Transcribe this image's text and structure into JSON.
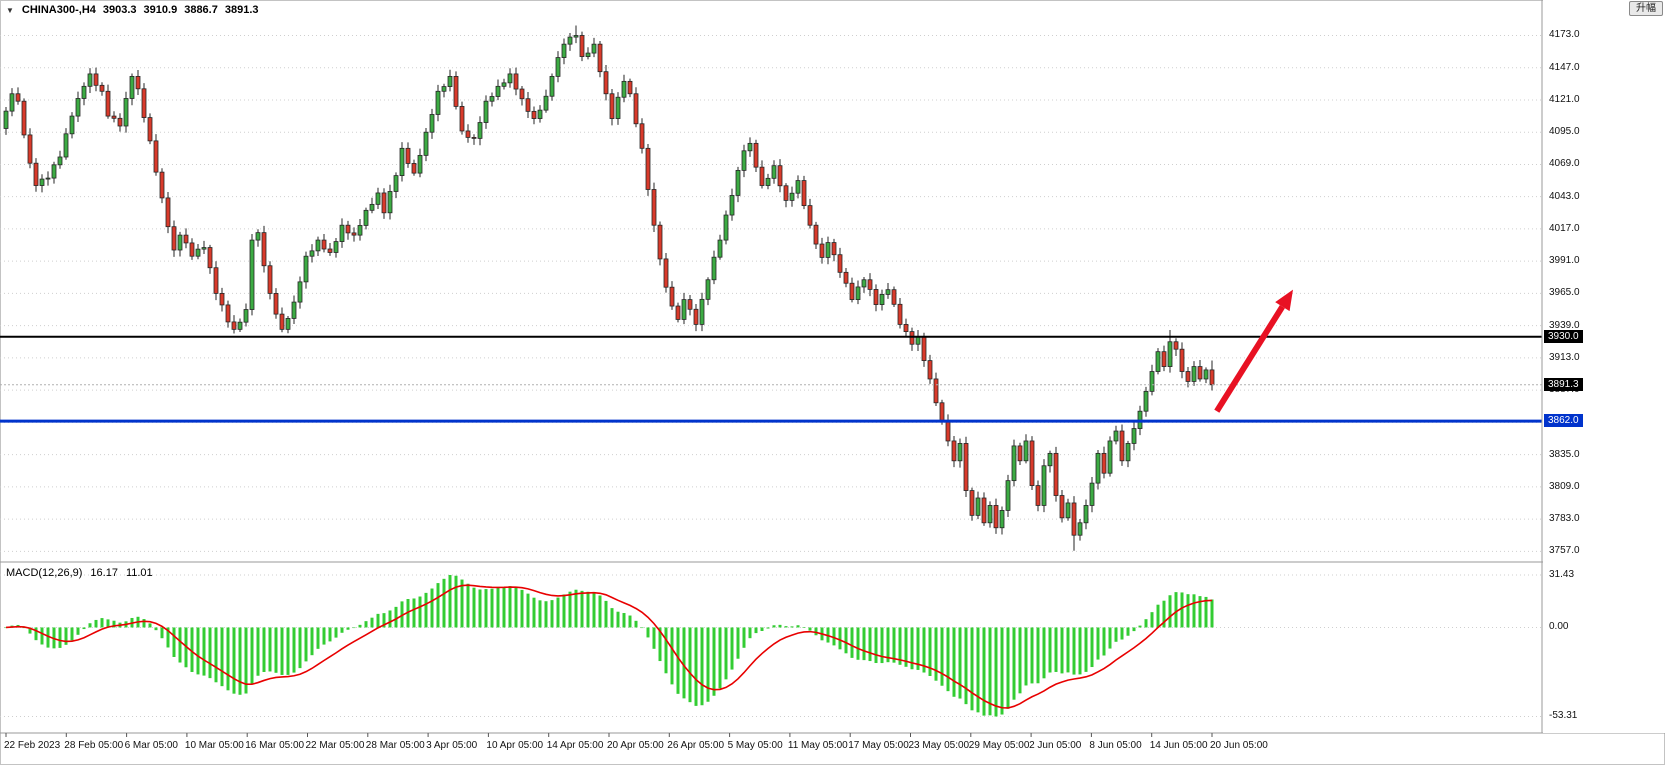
{
  "header": {
    "dropdown_glyph": "▼",
    "symbol": "CHINA300-,H4",
    "open": "3903.3",
    "high": "3910.9",
    "low": "3886.7",
    "close": "3891.3"
  },
  "toolbar": {
    "rise_button_label": "升幅"
  },
  "colors": {
    "bull_body": "#3cab43",
    "bear_body": "#d93a2b",
    "candle_border": "#262626",
    "macd_hist": "#33cc33",
    "macd_signal": "#e80000",
    "grid": "#cfcfcf",
    "bid_line": "#b0b0b0",
    "separator": "#9a9a9a",
    "arrow": "#e81123",
    "axis_text": "#111111"
  },
  "chart_data": [
    {
      "type": "candlestick",
      "symbol": "CHINA300-,H4",
      "y_ticks": [
        "4173.0",
        "4147.0",
        "4121.0",
        "4095.0",
        "4069.0",
        "4043.0",
        "4017.0",
        "3991.0",
        "3965.0",
        "3939.0",
        "3913.0",
        "3887.0",
        "3861.0",
        "3835.0",
        "3809.0",
        "3783.0",
        "3757.0"
      ],
      "y_range": [
        3750,
        4200
      ],
      "x_labels": [
        "22 Feb 2023",
        "28 Feb 05:00",
        "6 Mar 05:00",
        "10 Mar 05:00",
        "16 Mar 05:00",
        "22 Mar 05:00",
        "28 Mar 05:00",
        "3 Apr 05:00",
        "10 Apr 05:00",
        "14 Apr 05:00",
        "20 Apr 05:00",
        "26 Apr 05:00",
        "5 May 05:00",
        "11 May 05:00",
        "17 May 05:00",
        "23 May 05:00",
        "29 May 05:00",
        "2 Jun 05:00",
        "8 Jun 05:00",
        "14 Jun 05:00",
        "20 Jun 05:00"
      ],
      "candle_count": 202,
      "close_keypoints": [
        [
          0,
          4112
        ],
        [
          1,
          4126
        ],
        [
          2,
          4120
        ],
        [
          4,
          4070
        ],
        [
          5,
          4052
        ],
        [
          7,
          4058
        ],
        [
          9,
          4075
        ],
        [
          11,
          4108
        ],
        [
          13,
          4132
        ],
        [
          14,
          4142
        ],
        [
          16,
          4128
        ],
        [
          17,
          4108
        ],
        [
          19,
          4100
        ],
        [
          21,
          4140
        ],
        [
          22,
          4130
        ],
        [
          24,
          4088
        ],
        [
          26,
          4042
        ],
        [
          28,
          4000
        ],
        [
          29,
          4012
        ],
        [
          31,
          3995
        ],
        [
          33,
          4002
        ],
        [
          35,
          3965
        ],
        [
          37,
          3942
        ],
        [
          38,
          3936
        ],
        [
          40,
          3952
        ],
        [
          41,
          4008
        ],
        [
          42,
          4014
        ],
        [
          44,
          3965
        ],
        [
          46,
          3936
        ],
        [
          48,
          3958
        ],
        [
          50,
          3995
        ],
        [
          52,
          4008
        ],
        [
          54,
          3998
        ],
        [
          56,
          4020
        ],
        [
          58,
          4012
        ],
        [
          60,
          4032
        ],
        [
          62,
          4046
        ],
        [
          63,
          4030
        ],
        [
          65,
          4060
        ],
        [
          66,
          4082
        ],
        [
          68,
          4062
        ],
        [
          70,
          4095
        ],
        [
          72,
          4128
        ],
        [
          74,
          4140
        ],
        [
          76,
          4096
        ],
        [
          78,
          4090
        ],
        [
          80,
          4120
        ],
        [
          82,
          4132
        ],
        [
          84,
          4142
        ],
        [
          86,
          4122
        ],
        [
          88,
          4106
        ],
        [
          90,
          4124
        ],
        [
          91,
          4140
        ],
        [
          93,
          4166
        ],
        [
          95,
          4173
        ],
        [
          96,
          4156
        ],
        [
          98,
          4166
        ],
        [
          100,
          4126
        ],
        [
          101,
          4106
        ],
        [
          103,
          4136
        ],
        [
          104,
          4126
        ],
        [
          106,
          4082
        ],
        [
          108,
          4020
        ],
        [
          110,
          3970
        ],
        [
          112,
          3944
        ],
        [
          113,
          3960
        ],
        [
          115,
          3940
        ],
        [
          117,
          3976
        ],
        [
          119,
          4008
        ],
        [
          121,
          4044
        ],
        [
          123,
          4080
        ],
        [
          124,
          4086
        ],
        [
          126,
          4052
        ],
        [
          128,
          4068
        ],
        [
          130,
          4040
        ],
        [
          132,
          4056
        ],
        [
          134,
          4020
        ],
        [
          136,
          3994
        ],
        [
          137,
          4006
        ],
        [
          139,
          3982
        ],
        [
          141,
          3960
        ],
        [
          143,
          3976
        ],
        [
          145,
          3956
        ],
        [
          147,
          3968
        ],
        [
          149,
          3940
        ],
        [
          151,
          3924
        ],
        [
          152,
          3930
        ],
        [
          154,
          3896
        ],
        [
          156,
          3862
        ],
        [
          157,
          3846
        ],
        [
          158,
          3830
        ],
        [
          159,
          3844
        ],
        [
          160,
          3806
        ],
        [
          161,
          3786
        ],
        [
          162,
          3800
        ],
        [
          163,
          3780
        ],
        [
          164,
          3794
        ],
        [
          165,
          3776
        ],
        [
          166,
          3790
        ],
        [
          167,
          3814
        ],
        [
          168,
          3842
        ],
        [
          169,
          3830
        ],
        [
          170,
          3846
        ],
        [
          171,
          3810
        ],
        [
          172,
          3794
        ],
        [
          173,
          3826
        ],
        [
          174,
          3836
        ],
        [
          175,
          3802
        ],
        [
          176,
          3784
        ],
        [
          177,
          3796
        ],
        [
          178,
          3770
        ],
        [
          179,
          3780
        ],
        [
          180,
          3794
        ],
        [
          181,
          3812
        ],
        [
          182,
          3836
        ],
        [
          183,
          3820
        ],
        [
          184,
          3846
        ],
        [
          185,
          3854
        ],
        [
          186,
          3830
        ],
        [
          187,
          3844
        ],
        [
          188,
          3856
        ],
        [
          189,
          3870
        ],
        [
          190,
          3886
        ],
        [
          191,
          3902
        ],
        [
          192,
          3918
        ],
        [
          193,
          3906
        ],
        [
          194,
          3926
        ],
        [
          195,
          3920
        ],
        [
          196,
          3902
        ],
        [
          197,
          3894
        ],
        [
          198,
          3906
        ],
        [
          199,
          3896
        ],
        [
          200,
          3903.3
        ],
        [
          201,
          3891.3
        ]
      ],
      "wick_overrides": [
        [
          95,
          "high",
          4181
        ],
        [
          178,
          "low",
          3757.5
        ],
        [
          194,
          "high",
          3935.5
        ]
      ],
      "last_candle_ohlc": [
        3903.3,
        3910.9,
        3886.7,
        3891.3
      ],
      "horizontal_levels": [
        {
          "price": 3930.0,
          "label": "3930.0",
          "color": "#000000",
          "width": 2
        },
        {
          "price": 3862.0,
          "label": "3862.0",
          "color": "#0033cc",
          "width": 3
        }
      ],
      "current_price": {
        "value": 3891.3,
        "label": "3891.3"
      },
      "arrow_annotation": {
        "from": {
          "index": 201.8,
          "price": 3870
        },
        "to": {
          "index": 214.5,
          "price": 3968
        },
        "color": "#e81123",
        "stroke_width": 6
      }
    },
    {
      "type": "macd",
      "label": "MACD(12,26,9)",
      "current_values": [
        "16.17",
        "11.01"
      ],
      "params": {
        "fast": 12,
        "slow": 26,
        "signal": 9
      },
      "y_ticks": [
        "31.43",
        "0.00",
        "-53.31"
      ],
      "y_tick_values": [
        31.43,
        0,
        -53.31
      ]
    }
  ]
}
